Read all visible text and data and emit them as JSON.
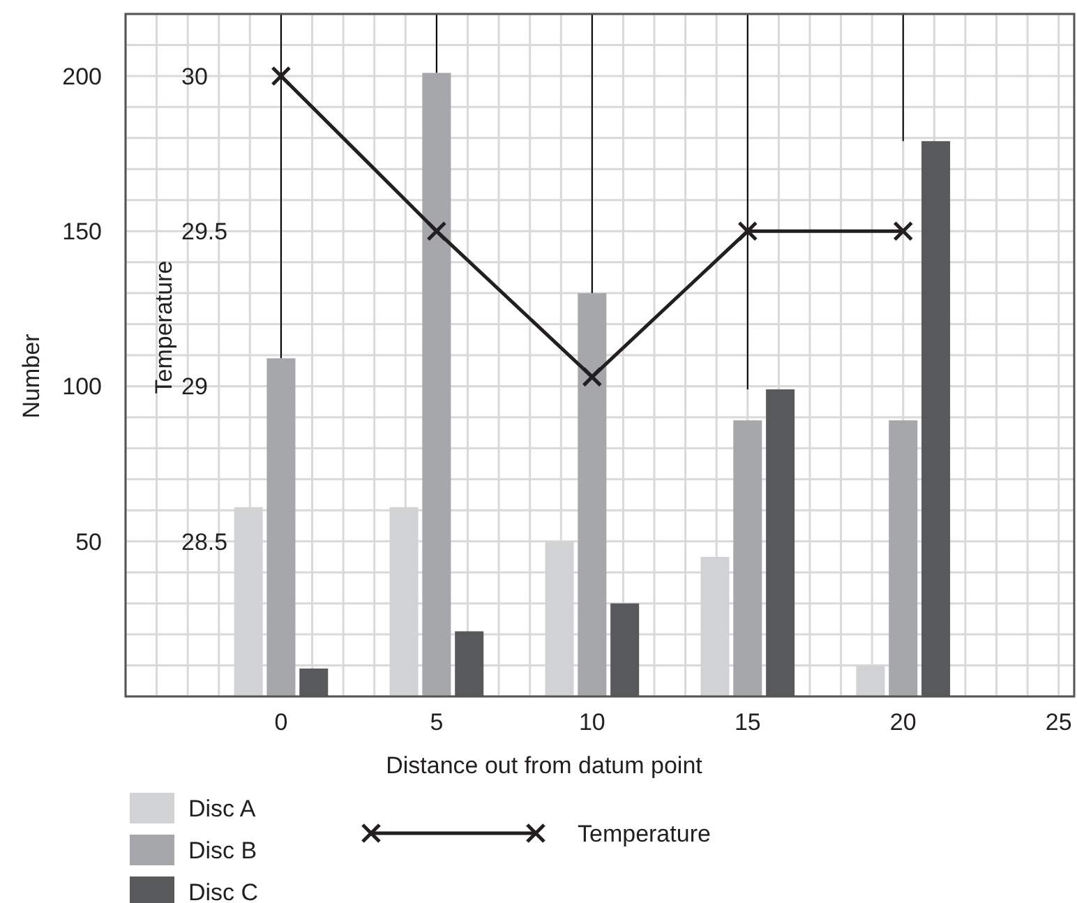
{
  "chart_data": {
    "type": "bar",
    "xlabel": "Distance out from datum point",
    "ylabel": "Number",
    "y2label": "Temperature",
    "x": [
      0,
      5,
      10,
      15,
      20
    ],
    "xlim": [
      -5,
      25.5
    ],
    "xticks": [
      {
        "value": -5,
        "label": null
      },
      {
        "value": -4,
        "label": null
      },
      {
        "value": -3,
        "label": null
      },
      {
        "value": -2,
        "label": null
      },
      {
        "value": -1,
        "label": null
      },
      0,
      {
        "value": 1,
        "label": null
      },
      {
        "value": 2,
        "label": null
      },
      {
        "value": 3,
        "label": null
      },
      {
        "value": 4,
        "label": null
      },
      5,
      {
        "value": 6,
        "label": null
      },
      {
        "value": 7,
        "label": null
      },
      {
        "value": 8,
        "label": null
      },
      {
        "value": 9,
        "label": null
      },
      10,
      {
        "value": 11,
        "label": null
      },
      {
        "value": 12,
        "label": null
      },
      {
        "value": 13,
        "label": null
      },
      {
        "value": 14,
        "label": null
      },
      15,
      {
        "value": 16,
        "label": null
      },
      {
        "value": 17,
        "label": null
      },
      {
        "value": 18,
        "label": null
      },
      {
        "value": 19,
        "label": null
      },
      20,
      {
        "value": 21,
        "label": null
      },
      {
        "value": 22,
        "label": null
      },
      {
        "value": 23,
        "label": null
      },
      {
        "value": 24,
        "label": null
      },
      25
    ],
    "ylim": [
      0,
      220
    ],
    "yticks": [
      {
        "value": 0,
        "label": null
      },
      {
        "value": 10,
        "label": null
      },
      {
        "value": 20,
        "label": null
      },
      {
        "value": 30,
        "label": null
      },
      {
        "value": 40,
        "label": null
      },
      50,
      {
        "value": 60,
        "label": null
      },
      {
        "value": 70,
        "label": null
      },
      {
        "value": 80,
        "label": null
      },
      {
        "value": 90,
        "label": null
      },
      100,
      {
        "value": 110,
        "label": null
      },
      {
        "value": 120,
        "label": null
      },
      {
        "value": 130,
        "label": null
      },
      {
        "value": 140,
        "label": null
      },
      150,
      {
        "value": 160,
        "label": null
      },
      {
        "value": 170,
        "label": null
      },
      {
        "value": 180,
        "label": null
      },
      {
        "value": 190,
        "label": null
      },
      200,
      {
        "value": 210,
        "label": null
      },
      {
        "value": 220,
        "label": null
      }
    ],
    "y2lim": [
      28,
      30.2
    ],
    "y2ticks": [
      28.5,
      29,
      29.5,
      30
    ],
    "grid": true,
    "legend": "bottom",
    "ref_lines": [
      {
        "axis": "x",
        "value": 0,
        "color": "#000000"
      },
      {
        "axis": "x",
        "value": 5,
        "color": "#000000"
      },
      {
        "axis": "x",
        "value": 10,
        "color": "#000000"
      },
      {
        "axis": "x",
        "value": 15,
        "color": "#000000"
      },
      {
        "axis": "x",
        "value": 20,
        "color": "#000000"
      }
    ],
    "series": [
      {
        "name": "Disc A",
        "color": "#d1d2d4",
        "values": [
          61,
          61,
          50,
          45,
          10
        ]
      },
      {
        "name": "Disc B",
        "color": "#a6a7aa",
        "values": [
          109,
          201,
          130,
          89,
          89
        ]
      },
      {
        "name": "Disc C",
        "color": "#58595b",
        "values": [
          9,
          21,
          30,
          99,
          179
        ]
      },
      {
        "name": "Temperature",
        "type": "line",
        "axis": "y2",
        "marker": "cross",
        "line_style": "solid",
        "color": "#231f20",
        "values": [
          30,
          29.5,
          29.03,
          29.5,
          29.5
        ]
      }
    ]
  }
}
